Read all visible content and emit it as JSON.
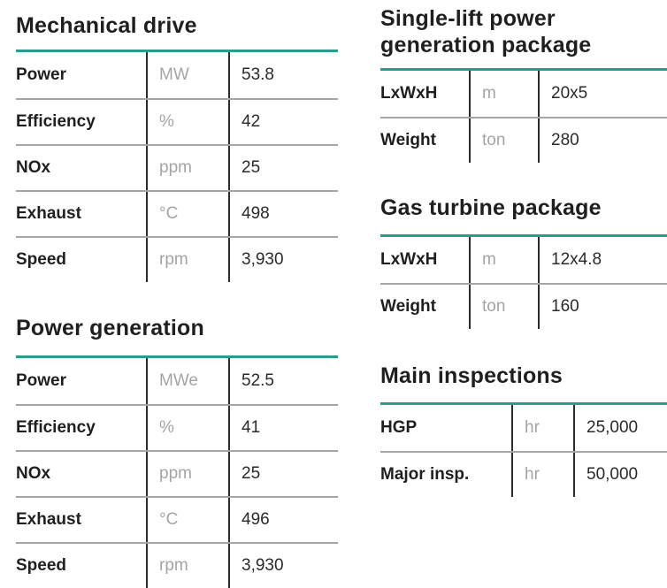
{
  "colors": {
    "accent_teal": "#2a9c8d",
    "heading_text": "#1f1f1f",
    "unit_gray": "#a4a4a4",
    "row_divider_gray": "#a5a5a5",
    "column_divider_dark": "#2b2b2b"
  },
  "tables": [
    {
      "title": "Mechanical drive",
      "rows": [
        {
          "label": "Power",
          "unit": "MW",
          "value": "53.8"
        },
        {
          "label": "Efficiency",
          "unit": "%",
          "value": "42"
        },
        {
          "label": "NOx",
          "unit": "ppm",
          "value": "25"
        },
        {
          "label": "Exhaust",
          "unit": "°C",
          "value": "498"
        },
        {
          "label": "Speed",
          "unit": "rpm",
          "value": "3,930"
        }
      ]
    },
    {
      "title": "Power generation",
      "rows": [
        {
          "label": "Power",
          "unit": "MWe",
          "value": "52.5"
        },
        {
          "label": "Efficiency",
          "unit": "%",
          "value": "41"
        },
        {
          "label": "NOx",
          "unit": "ppm",
          "value": "25"
        },
        {
          "label": "Exhaust",
          "unit": "°C",
          "value": "496"
        },
        {
          "label": "Speed",
          "unit": "rpm",
          "value": "3,930"
        }
      ]
    },
    {
      "title": "Single-lift power generation package",
      "rows": [
        {
          "label": "LxWxH",
          "unit": "m",
          "value": "20x5"
        },
        {
          "label": "Weight",
          "unit": "ton",
          "value": "280"
        }
      ]
    },
    {
      "title": "Gas turbine package",
      "rows": [
        {
          "label": "LxWxH",
          "unit": "m",
          "value": "12x4.8"
        },
        {
          "label": "Weight",
          "unit": "ton",
          "value": "160"
        }
      ]
    },
    {
      "title": "Main inspections",
      "rows": [
        {
          "label": "HGP",
          "unit": "hr",
          "value": "25,000"
        },
        {
          "label": "Major insp.",
          "unit": "hr",
          "value": "50,000"
        }
      ]
    }
  ]
}
